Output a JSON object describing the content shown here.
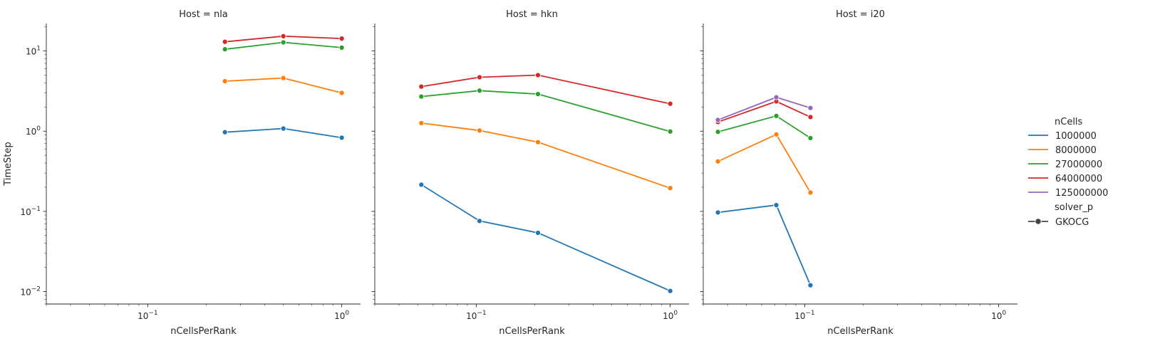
{
  "chart_data": {
    "type": "line",
    "x_scale": "log",
    "y_scale": "log",
    "xlabel": "nCellsPerRank",
    "ylabel": "TimeStep",
    "xlim": [
      0.03,
      1.25
    ],
    "ylim": [
      0.007,
      22
    ],
    "x_ticks": [
      {
        "value": 0.1,
        "label": "10",
        "exp": "−1"
      },
      {
        "value": 1,
        "label": "10",
        "exp": "0"
      }
    ],
    "y_ticks": [
      {
        "value": 0.01,
        "label": "10",
        "exp": "−2"
      },
      {
        "value": 0.1,
        "label": "10",
        "exp": "−1"
      },
      {
        "value": 1,
        "label": "10",
        "exp": "0"
      },
      {
        "value": 10,
        "label": "10",
        "exp": "1"
      }
    ],
    "grid": false,
    "legend_position": "right",
    "legend": {
      "hue_title": "nCells",
      "style_title": "solver_p",
      "style_entries": [
        "GKOCG"
      ]
    },
    "colors": {
      "1000000": "#1f77b4",
      "8000000": "#ff7f0e",
      "27000000": "#2ca02c",
      "64000000": "#d62728",
      "125000000": "#9467bd"
    },
    "hue_order": [
      "1000000",
      "8000000",
      "27000000",
      "64000000",
      "125000000"
    ],
    "panels": [
      {
        "title": "Host = nla",
        "series": [
          {
            "name": "1000000",
            "x": [
              0.25,
              0.5,
              1.0
            ],
            "y": [
              0.97,
              1.08,
              0.83
            ]
          },
          {
            "name": "8000000",
            "x": [
              0.25,
              0.5,
              1.0
            ],
            "y": [
              4.2,
              4.6,
              3.0
            ]
          },
          {
            "name": "27000000",
            "x": [
              0.25,
              0.5,
              1.0
            ],
            "y": [
              10.5,
              12.8,
              11.0
            ]
          },
          {
            "name": "64000000",
            "x": [
              0.25,
              0.5,
              1.0
            ],
            "y": [
              13.0,
              15.3,
              14.3
            ]
          }
        ]
      },
      {
        "title": "Host = hkn",
        "series": [
          {
            "name": "1000000",
            "x": [
              0.0521,
              0.104,
              0.208,
              1.0
            ],
            "y": [
              0.215,
              0.076,
              0.054,
              0.0102
            ]
          },
          {
            "name": "8000000",
            "x": [
              0.0521,
              0.104,
              0.208,
              1.0
            ],
            "y": [
              1.26,
              1.02,
              0.73,
              0.195
            ]
          },
          {
            "name": "27000000",
            "x": [
              0.0521,
              0.104,
              0.208,
              1.0
            ],
            "y": [
              2.7,
              3.2,
              2.9,
              0.99
            ]
          },
          {
            "name": "64000000",
            "x": [
              0.0521,
              0.104,
              0.208,
              1.0
            ],
            "y": [
              3.6,
              4.7,
              5.0,
              2.2
            ]
          }
        ]
      },
      {
        "title": "Host = i20",
        "series": [
          {
            "name": "1000000",
            "x": [
              0.0357,
              0.0714,
              0.107
            ],
            "y": [
              0.097,
              0.12,
              0.012
            ]
          },
          {
            "name": "8000000",
            "x": [
              0.0357,
              0.0714,
              0.107
            ],
            "y": [
              0.42,
              0.91,
              0.172
            ]
          },
          {
            "name": "27000000",
            "x": [
              0.0357,
              0.0714,
              0.107
            ],
            "y": [
              0.98,
              1.55,
              0.82
            ]
          },
          {
            "name": "64000000",
            "x": [
              0.0357,
              0.0714,
              0.107
            ],
            "y": [
              1.3,
              2.35,
              1.5
            ]
          },
          {
            "name": "125000000",
            "x": [
              0.0357,
              0.0714,
              0.107
            ],
            "y": [
              1.38,
              2.65,
              1.95
            ]
          }
        ]
      }
    ]
  }
}
